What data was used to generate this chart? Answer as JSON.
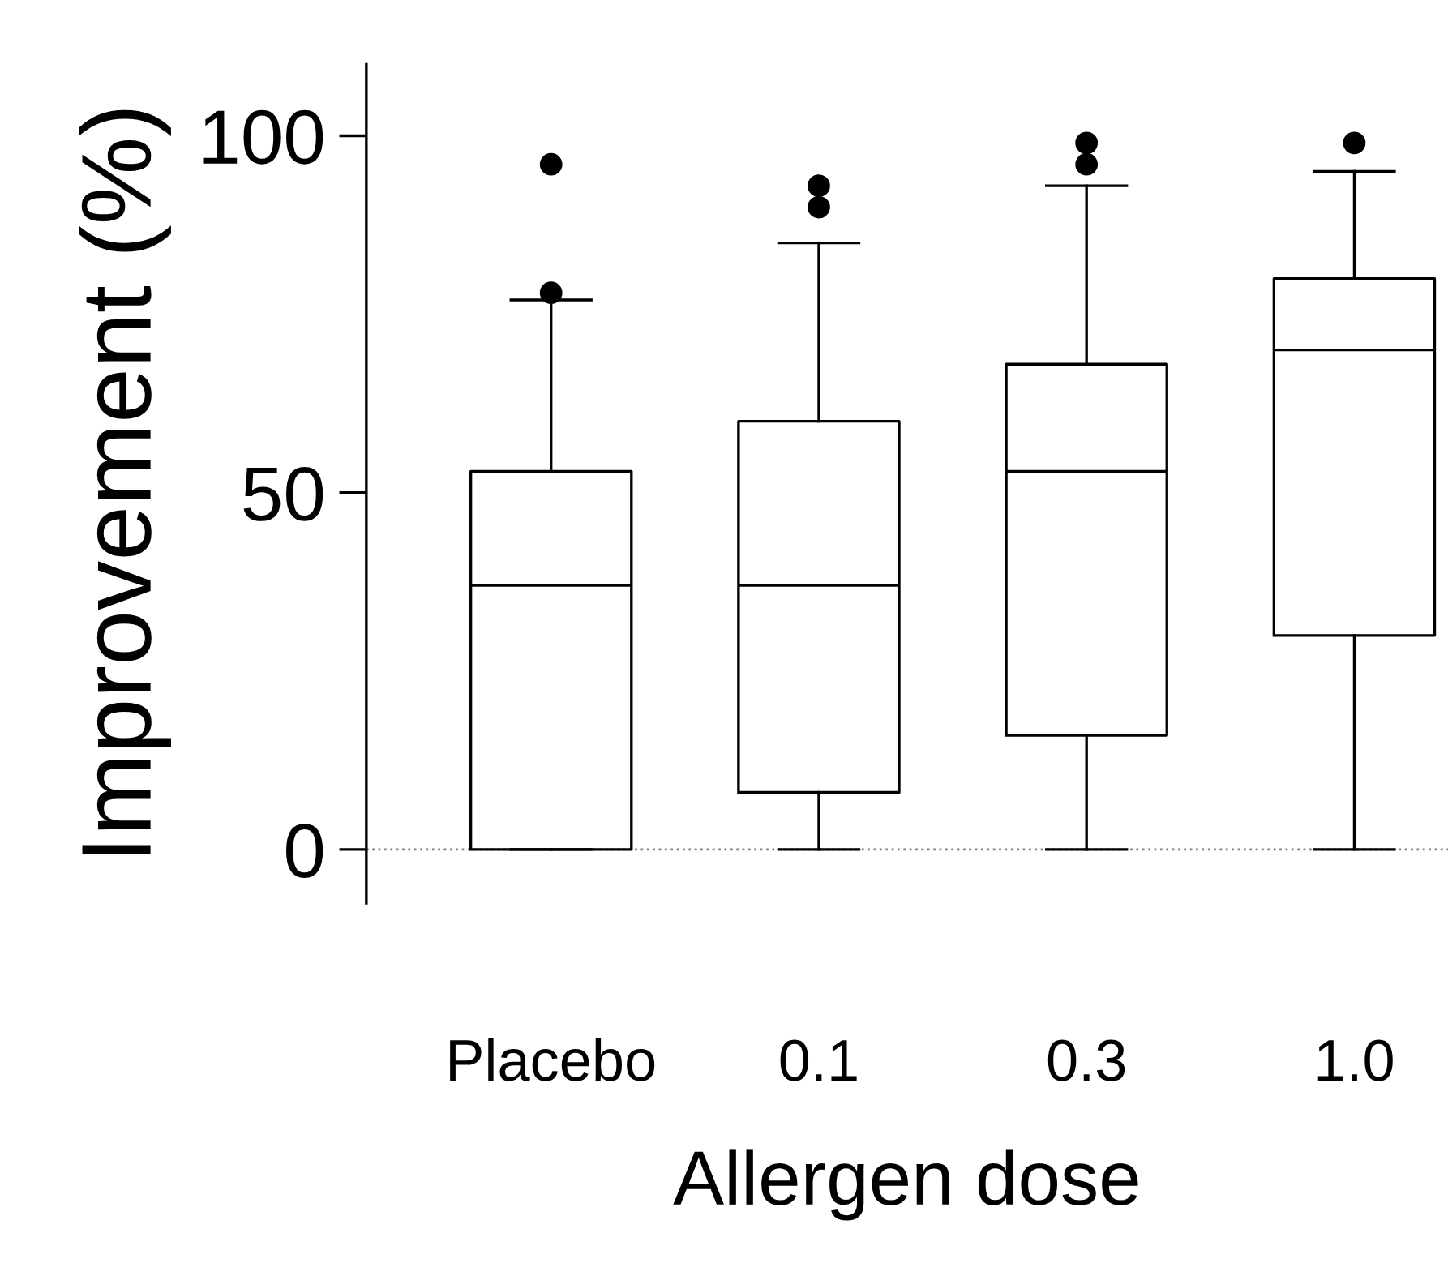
{
  "chart_data": {
    "type": "box",
    "xlabel": "Allergen dose",
    "ylabel": "Improvement (%)",
    "categories": [
      "Placebo",
      "0.1",
      "0.3",
      "1.0"
    ],
    "boxes": [
      {
        "low": 0,
        "q1": 0,
        "median": 37,
        "q3": 53,
        "high": 77,
        "outliers": [
          78,
          96
        ]
      },
      {
        "low": 0,
        "q1": 8,
        "median": 37,
        "q3": 60,
        "high": 85,
        "outliers": [
          90,
          93
        ]
      },
      {
        "low": 0,
        "q1": 16,
        "median": 53,
        "q3": 68,
        "high": 93,
        "outliers": [
          96,
          99
        ]
      },
      {
        "low": 0,
        "q1": 30,
        "median": 70,
        "q3": 80,
        "high": 95,
        "outliers": [
          99
        ]
      }
    ],
    "color": "#000000",
    "ylim": [
      -7.5,
      110
    ],
    "yticks": [
      0,
      50,
      100
    ],
    "ref_lines": [
      {
        "axis": "y",
        "value": 0,
        "color": "#808080",
        "line_style": "dotted"
      }
    ],
    "grid": false,
    "legend": false
  }
}
